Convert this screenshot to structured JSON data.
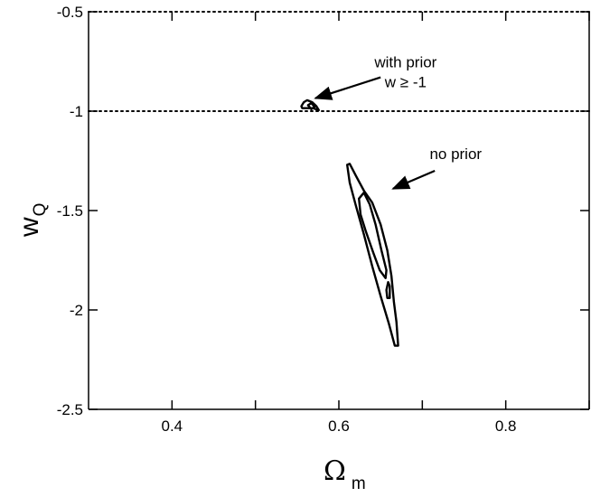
{
  "chart_data": {
    "type": "line",
    "xlabel": {
      "main": "Ω",
      "sub": "m"
    },
    "ylabel": {
      "main": "w",
      "sub": "Q"
    },
    "xlim": [
      0.3,
      0.9
    ],
    "ylim": [
      -2.5,
      -0.5
    ],
    "x_ticks": [
      {
        "value": 0.4,
        "label": "0.4"
      },
      {
        "value": 0.6,
        "label": "0.6"
      },
      {
        "value": 0.8,
        "label": "0.8"
      }
    ],
    "x_minor_ticks": [
      0.5,
      0.7,
      0.9
    ],
    "y_ticks": [
      {
        "value": -0.5,
        "label": "-0.5"
      },
      {
        "value": -1,
        "label": "-1"
      },
      {
        "value": -1.5,
        "label": "-1.5"
      },
      {
        "value": -2,
        "label": "-2"
      },
      {
        "value": -2.5,
        "label": "-2.5"
      }
    ],
    "reference_lines": [
      {
        "axis": "y",
        "value": -1,
        "style": "dotted"
      },
      {
        "axis": "y",
        "value": -0.5,
        "style": "dotted"
      }
    ],
    "contours": [
      {
        "group": "with prior",
        "level": "outer",
        "points": [
          [
            0.555,
            -0.975
          ],
          [
            0.558,
            -0.955
          ],
          [
            0.562,
            -0.945
          ],
          [
            0.568,
            -0.955
          ],
          [
            0.573,
            -0.975
          ],
          [
            0.576,
            -0.995
          ],
          [
            0.569,
            -0.985
          ],
          [
            0.561,
            -0.985
          ],
          [
            0.556,
            -0.985
          ],
          [
            0.555,
            -0.975
          ]
        ]
      },
      {
        "group": "with prior",
        "level": "inner",
        "points": [
          [
            0.563,
            -0.97
          ],
          [
            0.567,
            -0.96
          ],
          [
            0.571,
            -0.978
          ],
          [
            0.567,
            -0.99
          ],
          [
            0.563,
            -0.97
          ]
        ]
      },
      {
        "group": "no prior",
        "level": "outer",
        "points": [
          [
            0.61,
            -1.27
          ],
          [
            0.613,
            -1.265
          ],
          [
            0.621,
            -1.33
          ],
          [
            0.63,
            -1.4
          ],
          [
            0.64,
            -1.46
          ],
          [
            0.65,
            -1.57
          ],
          [
            0.658,
            -1.7
          ],
          [
            0.663,
            -1.83
          ],
          [
            0.666,
            -1.96
          ],
          [
            0.669,
            -2.06
          ],
          [
            0.671,
            -2.18
          ],
          [
            0.667,
            -2.18
          ],
          [
            0.66,
            -2.07
          ],
          [
            0.65,
            -1.93
          ],
          [
            0.64,
            -1.78
          ],
          [
            0.63,
            -1.62
          ],
          [
            0.62,
            -1.47
          ],
          [
            0.613,
            -1.36
          ],
          [
            0.61,
            -1.27
          ]
        ]
      },
      {
        "group": "no prior",
        "level": "inner",
        "points": [
          [
            0.624,
            -1.44
          ],
          [
            0.63,
            -1.41
          ],
          [
            0.637,
            -1.47
          ],
          [
            0.644,
            -1.57
          ],
          [
            0.651,
            -1.7
          ],
          [
            0.657,
            -1.8
          ],
          [
            0.656,
            -1.84
          ],
          [
            0.649,
            -1.8
          ],
          [
            0.641,
            -1.71
          ],
          [
            0.632,
            -1.6
          ],
          [
            0.626,
            -1.52
          ],
          [
            0.624,
            -1.44
          ]
        ]
      },
      {
        "group": "no prior",
        "level": "inner",
        "points": [
          [
            0.659,
            -1.86
          ],
          [
            0.661,
            -1.88
          ],
          [
            0.661,
            -1.94
          ],
          [
            0.658,
            -1.94
          ],
          [
            0.657,
            -1.9
          ],
          [
            0.659,
            -1.86
          ]
        ]
      }
    ],
    "annotations": [
      {
        "lines": [
          "with prior",
          "w ≥ -1"
        ],
        "text_at": [
          0.68,
          -0.78
        ],
        "arrow_from": [
          0.65,
          -0.83
        ],
        "arrow_to": [
          0.572,
          -0.935
        ]
      },
      {
        "lines": [
          "no prior"
        ],
        "text_at": [
          0.74,
          -1.24
        ],
        "arrow_from": [
          0.715,
          -1.3
        ],
        "arrow_to": [
          0.665,
          -1.39
        ]
      }
    ]
  }
}
